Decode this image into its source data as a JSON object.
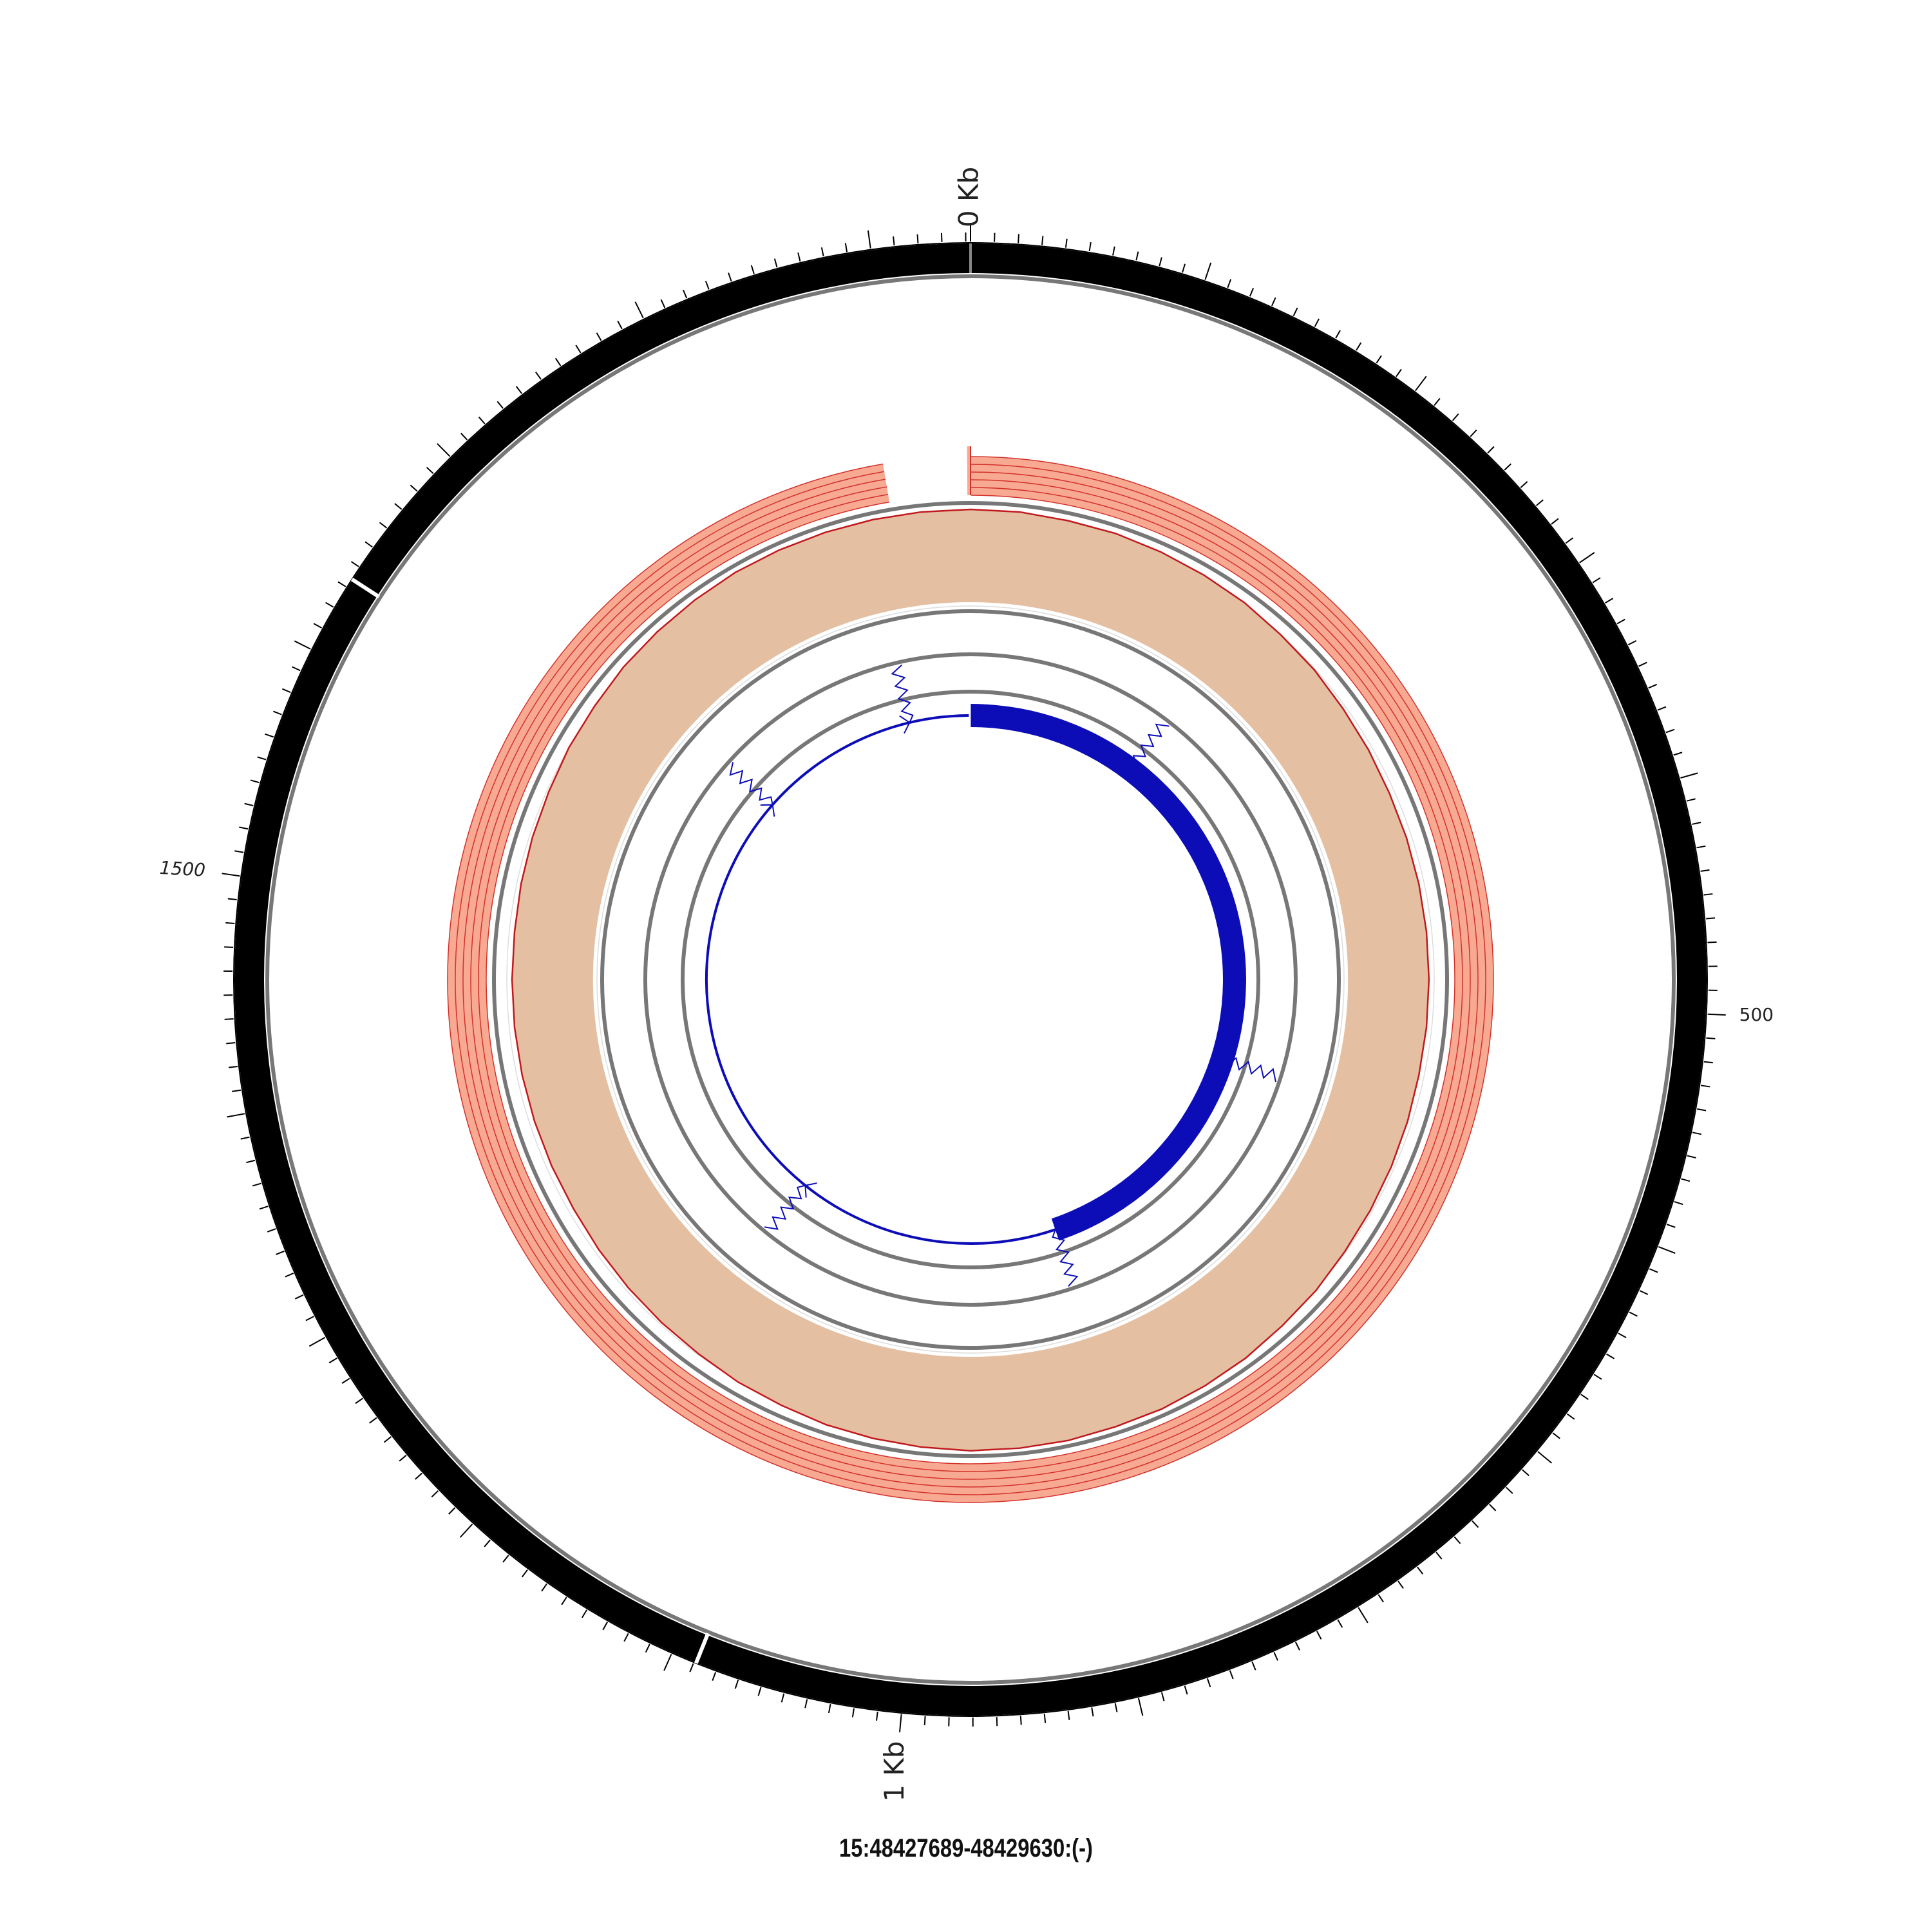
{
  "caption": "15:48427689-48429630:(-)",
  "ideogram": {
    "total_bp": 1942,
    "major_labels": [
      "0 Kb",
      "1 Kb"
    ],
    "minor_labels": [
      "500",
      "1500"
    ],
    "band_boundaries_bp": [
      1634,
      1089
    ],
    "colors": {
      "band": "#000000",
      "tick": "#000000",
      "separator": "#ffffff",
      "border": "#777777"
    }
  },
  "tracks": {
    "conservation": {
      "colors": {
        "fill": "#f8a992",
        "line": "#d2312b"
      },
      "gap_bp": [
        1940,
        1890
      ]
    },
    "coverage": {
      "values": [
        0.97,
        0.97,
        0.96,
        0.96,
        0.95,
        0.94,
        0.93,
        0.91,
        0.9,
        0.88,
        0.87,
        0.86,
        0.86,
        0.86,
        0.86,
        0.86,
        0.86,
        0.86,
        0.87,
        0.88,
        0.89,
        0.9,
        0.92,
        0.93,
        0.95,
        0.96,
        0.97,
        0.97,
        0.98,
        0.98,
        0.98,
        0.97,
        0.96,
        0.95,
        0.93,
        0.92,
        0.9,
        0.89,
        0.88,
        0.87,
        0.86,
        0.86,
        0.86,
        0.86,
        0.86,
        0.86,
        0.86,
        0.87,
        0.88,
        0.89,
        0.91,
        0.92,
        0.94,
        0.95,
        0.96,
        0.97,
        0.97,
        0.97,
        0.97,
        0.97
      ],
      "colors": {
        "fill": "#e5bfa2",
        "line": "#c0191d",
        "grid": "#dddddd"
      }
    },
    "gene": {
      "color": "#0d0db8",
      "thick_start_bp": 0,
      "thick_end_bp": 870,
      "exon_junctions_bp": [
        200,
        580,
        870,
        1180,
        1680,
        1870
      ]
    }
  }
}
